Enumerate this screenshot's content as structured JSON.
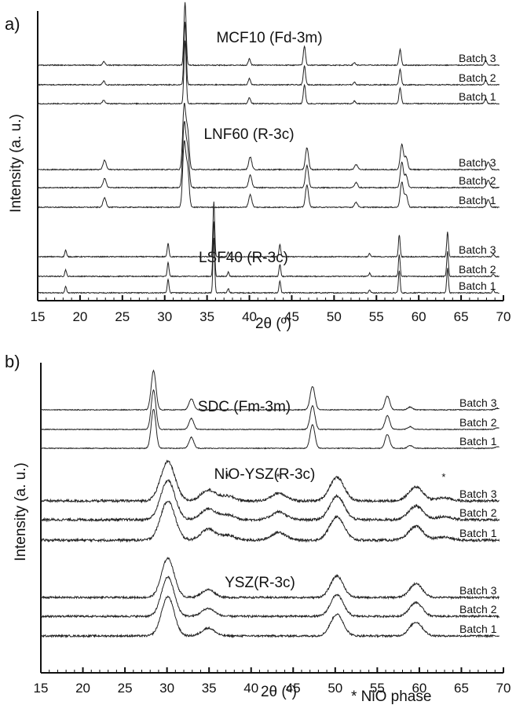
{
  "chart_data": [
    {
      "type": "line",
      "panel": "a)",
      "xlabel": "2θ (º)",
      "ylabel": "Intensity (a. u.)",
      "xlim": [
        15,
        70
      ],
      "xticks": [
        "15",
        "20",
        "25",
        "30",
        "35",
        "40",
        "45",
        "50",
        "55",
        "60",
        "65",
        "70"
      ],
      "groups": [
        {
          "label": "LSF40 (R-3c)",
          "series": [
            "Batch 1",
            "Batch 2",
            "Batch 3"
          ],
          "peaks": [
            {
              "x": 18.3,
              "h": 0.12
            },
            {
              "x": 30.4,
              "h": 0.25
            },
            {
              "x": 35.8,
              "h": 1.0
            },
            {
              "x": 37.5,
              "h": 0.08
            },
            {
              "x": 43.6,
              "h": 0.22
            },
            {
              "x": 54.2,
              "h": 0.06
            },
            {
              "x": 57.7,
              "h": 0.4
            },
            {
              "x": 63.4,
              "h": 0.45
            },
            {
              "x": 68.8,
              "h": 0.05
            }
          ]
        },
        {
          "label": "LNF60 (R-3c)",
          "series": [
            "Batch 1",
            "Batch 2",
            "Batch 3"
          ],
          "peaks": [
            {
              "x": 22.9,
              "h": 0.15
            },
            {
              "x": 32.3,
              "h": 1.0
            },
            {
              "x": 32.7,
              "h": 0.6
            },
            {
              "x": 40.1,
              "h": 0.2
            },
            {
              "x": 46.8,
              "h": 0.35
            },
            {
              "x": 52.6,
              "h": 0.08
            },
            {
              "x": 58.0,
              "h": 0.4
            },
            {
              "x": 58.5,
              "h": 0.2
            },
            {
              "x": 68.2,
              "h": 0.12
            }
          ]
        },
        {
          "label": "MCF10 (Fd-3m)",
          "series": [
            "Batch 1",
            "Batch 2",
            "Batch 3"
          ],
          "peaks": [
            {
              "x": 22.8,
              "h": 0.06
            },
            {
              "x": 32.4,
              "h": 1.0
            },
            {
              "x": 40.0,
              "h": 0.1
            },
            {
              "x": 46.5,
              "h": 0.3
            },
            {
              "x": 52.4,
              "h": 0.04
            },
            {
              "x": 57.8,
              "h": 0.25
            },
            {
              "x": 67.9,
              "h": 0.08
            }
          ]
        }
      ]
    },
    {
      "type": "line",
      "panel": "b)",
      "xlabel": "2θ (º)",
      "ylabel": "Intensity (a. u.)",
      "xlim": [
        15,
        70
      ],
      "xticks": [
        "15",
        "20",
        "25",
        "30",
        "35",
        "40",
        "45",
        "50",
        "55",
        "60",
        "65",
        "70"
      ],
      "annotation": "* NiO phase",
      "groups": [
        {
          "label": "SDC (Fm-3m)",
          "series": [
            "Batch 1",
            "Batch 2",
            "Batch 3"
          ],
          "peaks": [
            {
              "x": 28.4,
              "h": 1.0
            },
            {
              "x": 32.9,
              "h": 0.28
            },
            {
              "x": 47.3,
              "h": 0.6
            },
            {
              "x": 56.2,
              "h": 0.35
            },
            {
              "x": 58.9,
              "h": 0.07
            },
            {
              "x": 69.3,
              "h": 0.04
            }
          ]
        },
        {
          "label": "NiO-YSZ(R-3c)",
          "series": [
            "Batch 1",
            "Batch 2",
            "Batch 3"
          ],
          "peaks": [
            {
              "x": 30.1,
              "h": 1.0
            },
            {
              "x": 34.9,
              "h": 0.28
            },
            {
              "x": 37.2,
              "h": 0.12
            },
            {
              "x": 43.3,
              "h": 0.2
            },
            {
              "x": 50.2,
              "h": 0.6
            },
            {
              "x": 59.6,
              "h": 0.35
            },
            {
              "x": 62.9,
              "h": 0.08
            }
          ],
          "markers": [
            {
              "x": 37.2,
              "text": "*"
            },
            {
              "x": 43.2,
              "text": "*"
            },
            {
              "x": 62.9,
              "text": "*"
            }
          ]
        },
        {
          "label": "YSZ(R-3c)",
          "series": [
            "Batch 1",
            "Batch 2",
            "Batch 3"
          ],
          "peaks": [
            {
              "x": 30.1,
              "h": 1.0
            },
            {
              "x": 34.9,
              "h": 0.2
            },
            {
              "x": 50.2,
              "h": 0.55
            },
            {
              "x": 59.6,
              "h": 0.35
            }
          ]
        }
      ]
    }
  ]
}
